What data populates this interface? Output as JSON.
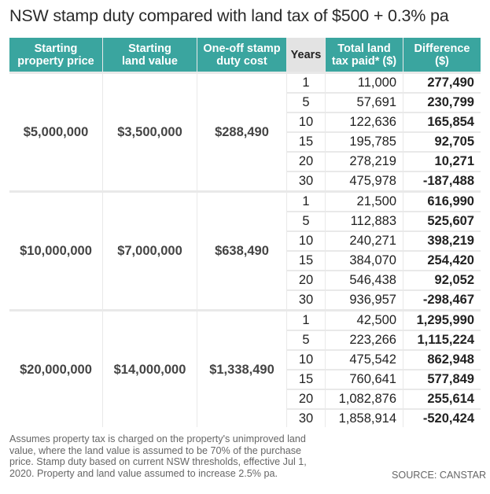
{
  "title": "NSW stamp duty compared with land tax of $500 + 0.3% pa",
  "chart_data": {
    "type": "table",
    "columns": [
      "Starting\nproperty price",
      "Starting\nland value",
      "One-off stamp\nduty cost",
      "Years",
      "Total land\ntax paid* ($)",
      "Difference\n($)"
    ],
    "groups": [
      {
        "property_price": "$5,000,000",
        "land_value": "$3,500,000",
        "stamp_duty": "$288,490",
        "rows": [
          {
            "years": "1",
            "land_tax": "11,000",
            "difference": "277,490"
          },
          {
            "years": "5",
            "land_tax": "57,691",
            "difference": "230,799"
          },
          {
            "years": "10",
            "land_tax": "122,636",
            "difference": "165,854"
          },
          {
            "years": "15",
            "land_tax": "195,785",
            "difference": "92,705"
          },
          {
            "years": "20",
            "land_tax": "278,219",
            "difference": "10,271"
          },
          {
            "years": "30",
            "land_tax": "475,978",
            "difference": "-187,488"
          }
        ]
      },
      {
        "property_price": "$10,000,000",
        "land_value": "$7,000,000",
        "stamp_duty": "$638,490",
        "rows": [
          {
            "years": "1",
            "land_tax": "21,500",
            "difference": "616,990"
          },
          {
            "years": "5",
            "land_tax": "112,883",
            "difference": "525,607"
          },
          {
            "years": "10",
            "land_tax": "240,271",
            "difference": "398,219"
          },
          {
            "years": "15",
            "land_tax": "384,070",
            "difference": "254,420"
          },
          {
            "years": "20",
            "land_tax": "546,438",
            "difference": "92,052"
          },
          {
            "years": "30",
            "land_tax": "936,957",
            "difference": "-298,467"
          }
        ]
      },
      {
        "property_price": "$20,000,000",
        "land_value": "$14,000,000",
        "stamp_duty": "$1,338,490",
        "rows": [
          {
            "years": "1",
            "land_tax": "42,500",
            "difference": "1,295,990"
          },
          {
            "years": "5",
            "land_tax": "223,266",
            "difference": "1,115,224"
          },
          {
            "years": "10",
            "land_tax": "475,542",
            "difference": "862,948"
          },
          {
            "years": "15",
            "land_tax": "760,641",
            "difference": "577,849"
          },
          {
            "years": "20",
            "land_tax": "1,082,876",
            "difference": "255,614"
          },
          {
            "years": "30",
            "land_tax": "1,858,914",
            "difference": "-520,424"
          }
        ]
      }
    ]
  },
  "footnote": "Assumes property tax is charged on the property's unimproved land\nvalue, where the land value is assumed to be 70% of the purchase\nprice. Stamp duty based on current NSW thresholds, effective Jul 1,\n2020. Property and land value assumed to increase 2.5% pa.",
  "source": "SOURCE: CANSTAR",
  "colors": {
    "header_fill": "#3aa59f",
    "header_text": "#ffffff",
    "panel_background": "#e9e9e9",
    "cell_fill": "#ffffff"
  }
}
